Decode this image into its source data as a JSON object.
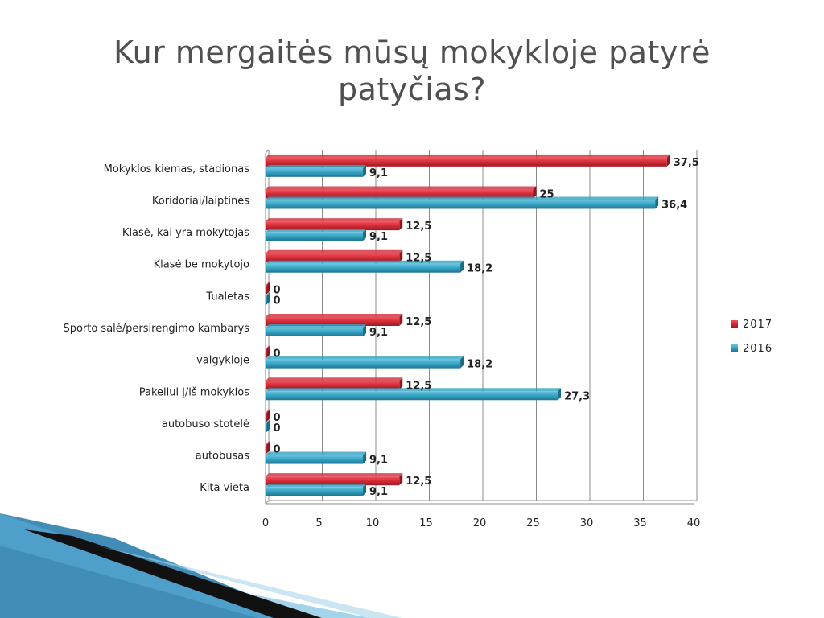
{
  "slide": {
    "title": "Kur mergaitės mūsų mokykloje patyrė patyčias?"
  },
  "chart_data": {
    "type": "bar",
    "orientation": "horizontal",
    "categories": [
      "Mokyklos kiemas, stadionas",
      "Koridoriai/laiptinės",
      "Klasė, kai yra mokytojas",
      "Klasė be mokytojo",
      "Tualetas",
      "Sporto salė/persirengimo kambarys",
      "valgykloje",
      "Pakeliui į/iš mokyklos",
      "autobuso stotelė",
      "autobusas",
      "Kita vieta"
    ],
    "series": [
      {
        "name": "2017",
        "color": "#d42a36",
        "values": [
          37.5,
          25,
          12.5,
          12.5,
          0,
          12.5,
          0,
          12.5,
          0,
          0,
          12.5
        ],
        "labels": [
          "37,5",
          "25",
          "12,5",
          "12,5",
          "0",
          "12,5",
          "0",
          "12,5",
          "0",
          "0",
          "12,5"
        ]
      },
      {
        "name": "2016",
        "color": "#33a3c3",
        "values": [
          9.1,
          36.4,
          9.1,
          18.2,
          0,
          9.1,
          18.2,
          27.3,
          0,
          9.1,
          9.1
        ],
        "labels": [
          "9,1",
          "36,4",
          "9,1",
          "18,2",
          "0",
          "9,1",
          "18,2",
          "27,3",
          "0",
          "9,1",
          "9,1"
        ]
      }
    ],
    "xlim": [
      0,
      40
    ],
    "xticks": [
      0,
      5,
      10,
      15,
      20,
      25,
      30,
      35,
      40
    ],
    "grid": true,
    "legend_position": "right"
  }
}
